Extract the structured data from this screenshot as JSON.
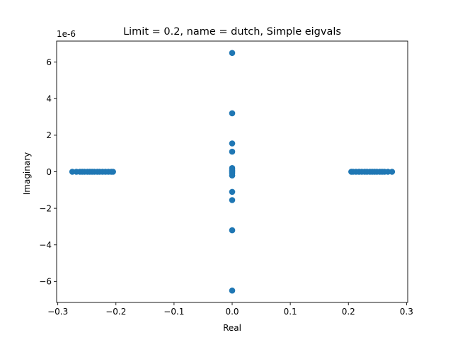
{
  "chart_data": {
    "type": "scatter",
    "title": "Limit = 0.2, name = dutch, Simple eigvals",
    "xlabel": "Real",
    "ylabel": "Imaginary",
    "y_offset_text": "1e-6",
    "xlim": [
      -0.302,
      0.302
    ],
    "ylim": [
      -7.15,
      7.15
    ],
    "xticks": [
      -0.3,
      -0.2,
      -0.1,
      0.0,
      0.1,
      0.2,
      0.3
    ],
    "xtick_labels": [
      "−0.3",
      "−0.2",
      "−0.1",
      "0.0",
      "0.1",
      "0.2",
      "0.3"
    ],
    "yticks": [
      -6,
      -4,
      -2,
      0,
      2,
      4,
      6
    ],
    "ytick_labels": [
      "−6",
      "−4",
      "−2",
      "0",
      "2",
      "4",
      "6"
    ],
    "grid": false,
    "marker_color": "#1f77b4",
    "series": [
      {
        "points": [
          {
            "x": -0.275,
            "y": 0
          },
          {
            "x": -0.268,
            "y": 0
          },
          {
            "x": -0.262,
            "y": 0
          },
          {
            "x": -0.258,
            "y": 0
          },
          {
            "x": -0.254,
            "y": 0
          },
          {
            "x": -0.249,
            "y": 0
          },
          {
            "x": -0.245,
            "y": 0
          },
          {
            "x": -0.241,
            "y": 0
          },
          {
            "x": -0.237,
            "y": 0
          },
          {
            "x": -0.232,
            "y": 0
          },
          {
            "x": -0.228,
            "y": 0
          },
          {
            "x": -0.223,
            "y": 0
          },
          {
            "x": -0.218,
            "y": 0
          },
          {
            "x": -0.213,
            "y": 0
          },
          {
            "x": -0.208,
            "y": 0
          },
          {
            "x": -0.205,
            "y": 0
          },
          {
            "x": 0.205,
            "y": 0
          },
          {
            "x": 0.208,
            "y": 0
          },
          {
            "x": 0.213,
            "y": 0
          },
          {
            "x": 0.218,
            "y": 0
          },
          {
            "x": 0.223,
            "y": 0
          },
          {
            "x": 0.228,
            "y": 0
          },
          {
            "x": 0.232,
            "y": 0
          },
          {
            "x": 0.237,
            "y": 0
          },
          {
            "x": 0.241,
            "y": 0
          },
          {
            "x": 0.245,
            "y": 0
          },
          {
            "x": 0.249,
            "y": 0
          },
          {
            "x": 0.254,
            "y": 0
          },
          {
            "x": 0.258,
            "y": 0
          },
          {
            "x": 0.262,
            "y": 0
          },
          {
            "x": 0.268,
            "y": 0
          },
          {
            "x": 0.275,
            "y": 0
          },
          {
            "x": 0,
            "y": 6.5
          },
          {
            "x": 0,
            "y": 3.2
          },
          {
            "x": 0,
            "y": 1.55
          },
          {
            "x": 0,
            "y": 1.1
          },
          {
            "x": 0,
            "y": 0.2
          },
          {
            "x": 0,
            "y": 0.08
          },
          {
            "x": 0,
            "y": 0.0
          },
          {
            "x": 0,
            "y": -0.08
          },
          {
            "x": 0,
            "y": -0.2
          },
          {
            "x": 0,
            "y": -1.1
          },
          {
            "x": 0,
            "y": -1.55
          },
          {
            "x": 0,
            "y": -3.2
          },
          {
            "x": 0,
            "y": -6.5
          }
        ]
      }
    ]
  }
}
